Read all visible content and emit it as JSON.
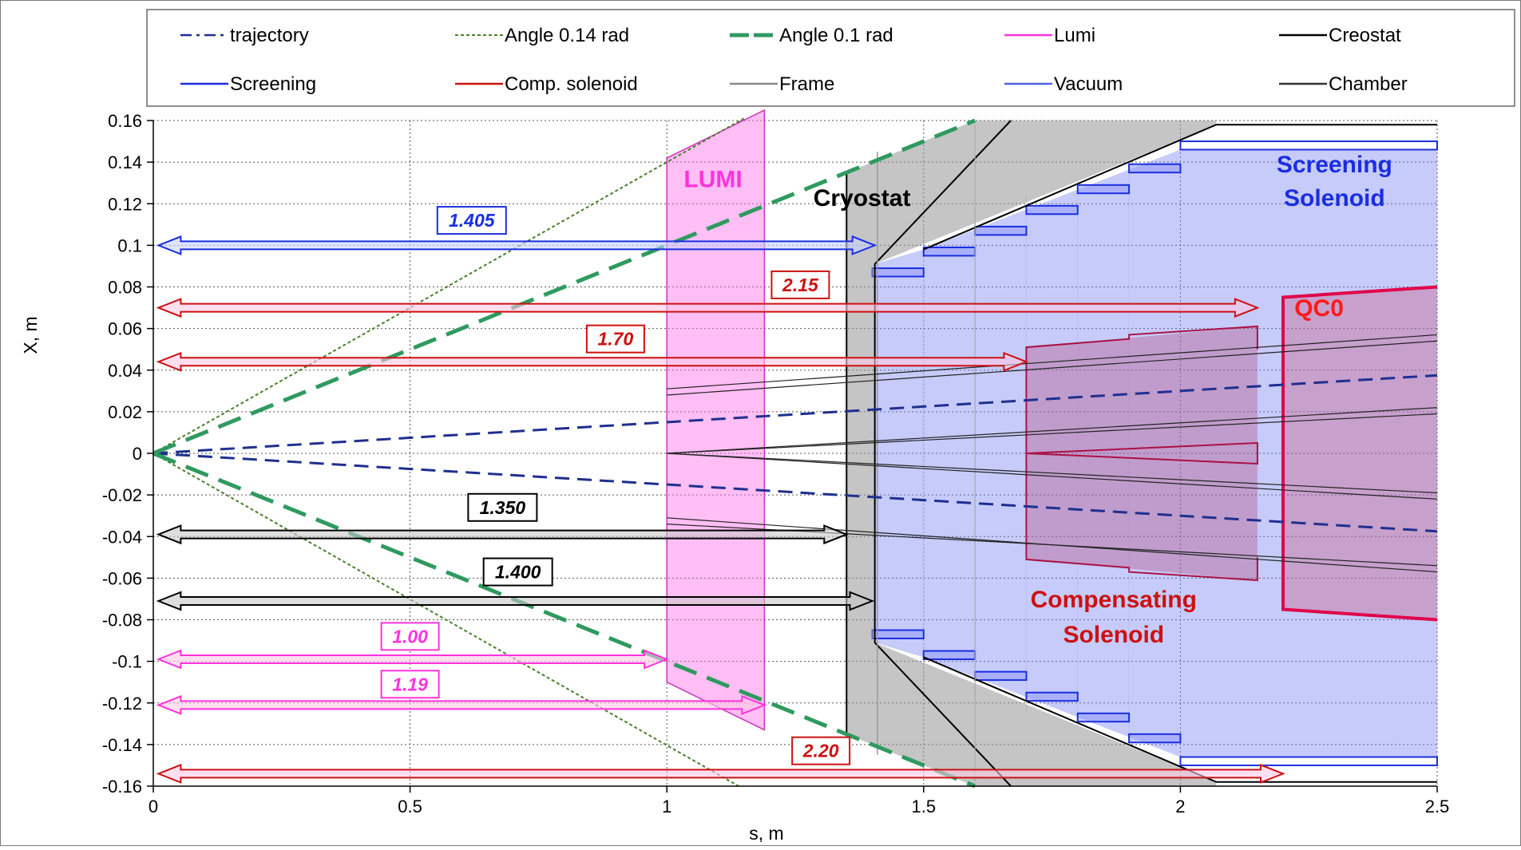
{
  "chart_data": {
    "type": "line",
    "xlabel": "s, m",
    "ylabel": "X, m",
    "xlim": [
      0,
      2.5
    ],
    "ylim": [
      -0.16,
      0.16
    ],
    "x_ticks": [
      0,
      0.5,
      1,
      1.5,
      2,
      2.5
    ],
    "x_tick_labels": [
      "0",
      "0.5",
      "1",
      "1.5",
      "2",
      "2.5"
    ],
    "y_ticks": [
      0.16,
      0.14,
      0.12,
      0.1,
      0.08,
      0.06,
      0.04,
      0.02,
      0,
      -0.02,
      -0.04,
      -0.06,
      -0.08,
      -0.1,
      -0.12,
      -0.14,
      -0.16
    ],
    "y_tick_labels": [
      "0.16",
      "0.14",
      "0.12",
      "0.1",
      "0.08",
      "0.06",
      "0.04",
      "0.02",
      "0",
      "-0.02",
      "-0.04",
      "-0.06",
      "-0.08",
      "-0.1",
      "-0.12",
      "-0.14",
      "-0.16"
    ],
    "grid": true,
    "legend_position": "top",
    "legend": [
      {
        "label": "trajectory",
        "color": "#1f2f8f",
        "style": "dash-dot"
      },
      {
        "label": "Angle 0.14 rad",
        "color": "#4a7f2a",
        "style": "dotted"
      },
      {
        "label": "Angle 0.1 rad",
        "color": "#2f9a5f",
        "style": "thick-dash"
      },
      {
        "label": "Lumi",
        "color": "#ff33dd",
        "style": "solid"
      },
      {
        "label": "Creostat",
        "color": "#000000",
        "style": "solid"
      },
      {
        "label": "Screening",
        "color": "#1a2ee0",
        "style": "solid"
      },
      {
        "label": "Comp. solenoid",
        "color": "#cc1111",
        "style": "solid"
      },
      {
        "label": "Frame",
        "color": "#888888",
        "style": "solid"
      },
      {
        "label": "Vacuum",
        "color": "#5060e8",
        "style": "solid"
      },
      {
        "label": "Chamber",
        "color": "#333333",
        "style": "solid"
      }
    ],
    "series": [
      {
        "name": "trajectory",
        "color": "#1f2f8f",
        "lines": [
          {
            "x": [
              0,
              2.5
            ],
            "y": [
              0,
              0.0375
            ]
          },
          {
            "x": [
              0,
              2.5
            ],
            "y": [
              0,
              -0.0375
            ]
          }
        ]
      },
      {
        "name": "Angle 0.14 rad",
        "color": "#4a7f2a",
        "lines": [
          {
            "x": [
              0,
              1.15
            ],
            "y": [
              0,
              0.161
            ]
          },
          {
            "x": [
              0,
              1.14
            ],
            "y": [
              0,
              -0.16
            ]
          }
        ]
      },
      {
        "name": "Angle 0.1 rad",
        "color": "#2f9a5f",
        "lines": [
          {
            "x": [
              0,
              1.6
            ],
            "y": [
              0,
              0.16
            ]
          },
          {
            "x": [
              0,
              1.6
            ],
            "y": [
              0,
              -0.16
            ]
          }
        ]
      }
    ],
    "region_labels": [
      {
        "text": "LUMI",
        "x": 1.09,
        "y": 0.128,
        "color": "#ff33dd"
      },
      {
        "text": "Cryostat",
        "x": 1.38,
        "y": 0.119,
        "color": "#000000"
      },
      {
        "text": "Screening",
        "x": 2.3,
        "y": 0.135,
        "color": "#1a2ee0"
      },
      {
        "text": "Solenoid",
        "x": 2.3,
        "y": 0.119,
        "color": "#1a2ee0"
      },
      {
        "text": "QC0",
        "x": 2.27,
        "y": 0.066,
        "color": "#ff1a1a"
      },
      {
        "text": "Compensating",
        "x": 1.87,
        "y": -0.074,
        "color": "#cc1111"
      },
      {
        "text": "Solenoid",
        "x": 1.87,
        "y": -0.091,
        "color": "#cc1111"
      }
    ],
    "dimension_arrows": [
      {
        "label": "1.405",
        "y": 0.1,
        "x_end": 1.405,
        "color": "#1a2ee0",
        "label_x": 0.62,
        "label_y": 0.112
      },
      {
        "label": "2.15",
        "y": 0.07,
        "x_end": 2.15,
        "color": "#cc1111",
        "label_x": 1.26,
        "label_y": 0.081
      },
      {
        "label": "1.70",
        "y": 0.044,
        "x_end": 1.7,
        "color": "#cc1111",
        "label_x": 0.9,
        "label_y": 0.055
      },
      {
        "label": "1.350",
        "y": -0.039,
        "x_end": 1.35,
        "color": "#000000",
        "label_x": 0.68,
        "label_y": -0.026
      },
      {
        "label": "1.400",
        "y": -0.071,
        "x_end": 1.4,
        "color": "#000000",
        "label_x": 0.71,
        "label_y": -0.057
      },
      {
        "label": "1.00",
        "y": -0.099,
        "x_end": 1.0,
        "color": "#ff33dd",
        "label_x": 0.5,
        "label_y": -0.088
      },
      {
        "label": "1.19",
        "y": -0.121,
        "x_end": 1.19,
        "color": "#ff33dd",
        "label_x": 0.5,
        "label_y": -0.111
      },
      {
        "label": "2.20",
        "y": -0.154,
        "x_end": 2.2,
        "color": "#cc1111",
        "label_x": 1.3,
        "label_y": -0.143
      }
    ]
  }
}
